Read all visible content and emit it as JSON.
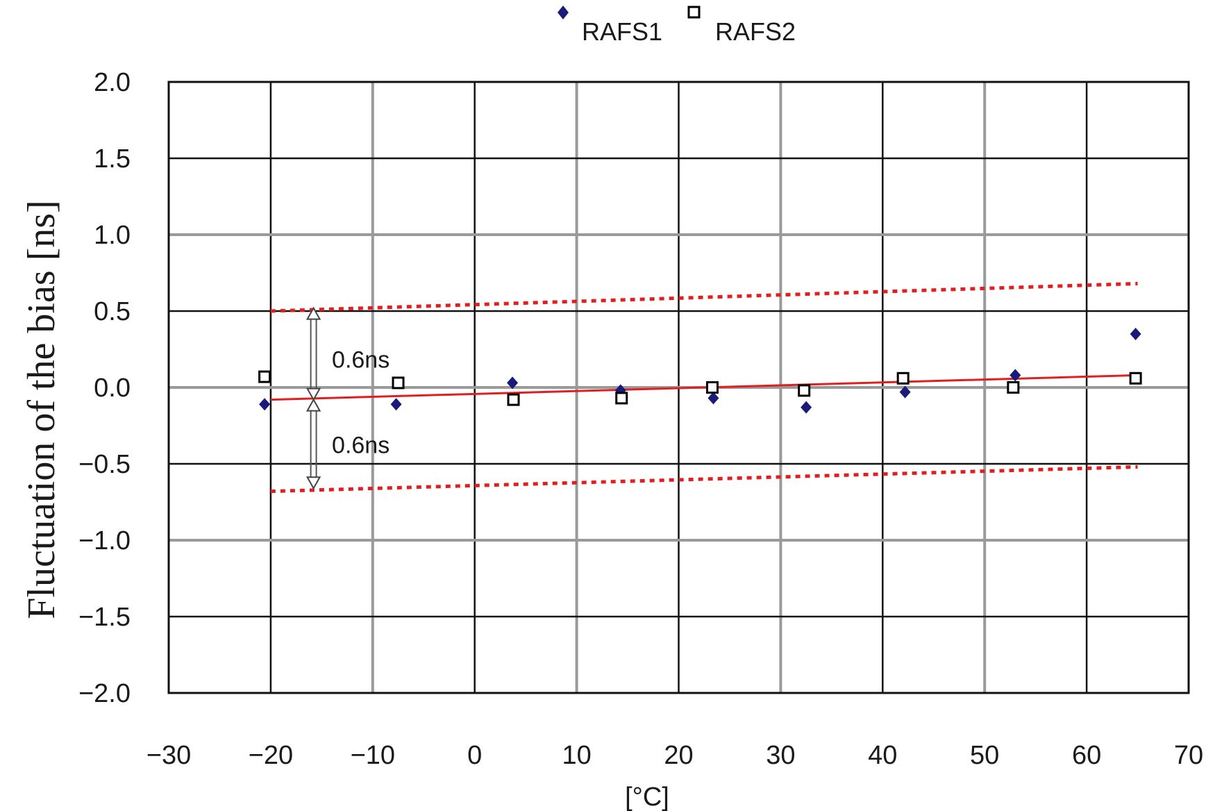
{
  "chart_data": {
    "type": "scatter",
    "xlabel": "[°C]",
    "ylabel": "Fluctuation of the bias [ns]",
    "xlim": [
      -30,
      70
    ],
    "ylim": [
      -2.0,
      2.0
    ],
    "x_ticks": [
      -30,
      -20,
      -10,
      0,
      10,
      20,
      30,
      40,
      50,
      60,
      70
    ],
    "x_tick_labels": [
      "−30",
      "−20",
      "−10",
      "0",
      "10",
      "20",
      "30",
      "40",
      "50",
      "60",
      "70"
    ],
    "y_ticks": [
      2.0,
      1.5,
      1.0,
      0.5,
      0.0,
      -0.5,
      -1.0,
      -1.5,
      -2.0
    ],
    "y_tick_labels": [
      "2.0",
      "1.5",
      "1.0",
      "0.5",
      "0.0",
      "−0.5",
      "−1.0",
      "−1.5",
      "−2.0"
    ],
    "grid": true,
    "legend_position": "top-center",
    "series": [
      {
        "name": "RAFS1",
        "marker": "diamond",
        "color": "#1a1a7a",
        "points": [
          {
            "x": -20.6,
            "y": -0.11
          },
          {
            "x": -7.7,
            "y": -0.11
          },
          {
            "x": 3.7,
            "y": 0.03
          },
          {
            "x": 14.3,
            "y": -0.02
          },
          {
            "x": 23.4,
            "y": -0.07
          },
          {
            "x": 32.5,
            "y": -0.13
          },
          {
            "x": 42.2,
            "y": -0.03
          },
          {
            "x": 53.0,
            "y": 0.08
          },
          {
            "x": 64.8,
            "y": 0.35
          }
        ]
      },
      {
        "name": "RAFS2",
        "marker": "square",
        "color": "#000000",
        "points": [
          {
            "x": -20.6,
            "y": 0.07
          },
          {
            "x": -7.5,
            "y": 0.03
          },
          {
            "x": 3.8,
            "y": -0.08
          },
          {
            "x": 14.4,
            "y": -0.07
          },
          {
            "x": 23.3,
            "y": 0.0
          },
          {
            "x": 32.3,
            "y": -0.02
          },
          {
            "x": 42.0,
            "y": 0.06
          },
          {
            "x": 52.8,
            "y": 0.0
          },
          {
            "x": 64.8,
            "y": 0.06
          }
        ]
      }
    ],
    "trend_line": {
      "color": "#e02020",
      "x": [
        -20,
        65
      ],
      "y": [
        -0.08,
        0.08
      ]
    },
    "bound_lines": [
      {
        "style": "dotted",
        "color": "#e02020",
        "x": [
          -20,
          65
        ],
        "y": [
          0.5,
          0.68
        ]
      },
      {
        "style": "dotted",
        "color": "#e02020",
        "x": [
          -20,
          65
        ],
        "y": [
          -0.68,
          -0.52
        ]
      }
    ],
    "annotations": [
      {
        "text": "0.6ns",
        "x": -14,
        "y": 0.13
      },
      {
        "text": "0.6ns",
        "x": -14,
        "y": -0.43
      }
    ],
    "arrows": [
      {
        "x": -15.8,
        "y_from": 0.52,
        "y_to": -0.08
      },
      {
        "x": -15.8,
        "y_from": -0.08,
        "y_to": -0.66
      }
    ]
  }
}
